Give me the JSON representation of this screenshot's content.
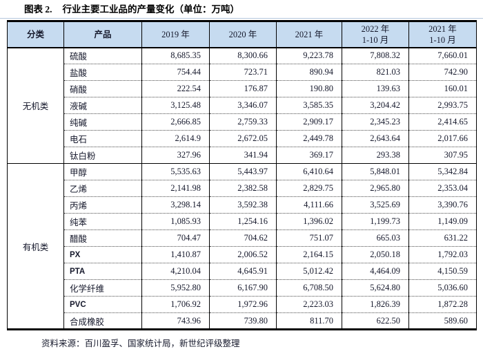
{
  "title": {
    "prefix": "图表 2.",
    "text": "行业主要工业品的产量变化（单位：万吨）"
  },
  "table": {
    "columns": [
      "分类",
      "产品",
      "2019 年",
      "2020 年",
      "2021 年",
      "2022 年\n1-10 月",
      "2021 年\n1-10 月"
    ],
    "sections": [
      {
        "category": "无机类",
        "rows": [
          {
            "product": "硫酸",
            "values": [
              "8,685.35",
              "8,300.66",
              "9,223.78",
              "7,808.32",
              "7,660.01"
            ]
          },
          {
            "product": "盐酸",
            "values": [
              "754.44",
              "723.71",
              "890.94",
              "821.03",
              "742.90"
            ]
          },
          {
            "product": "硝酸",
            "values": [
              "222.54",
              "176.87",
              "190.80",
              "139.63",
              "160.01"
            ]
          },
          {
            "product": "液碱",
            "values": [
              "3,125.48",
              "3,346.07",
              "3,585.35",
              "3,204.42",
              "2,993.75"
            ]
          },
          {
            "product": "纯碱",
            "values": [
              "2,666.85",
              "2,759.33",
              "2,909.17",
              "2,345.23",
              "2,414.65"
            ]
          },
          {
            "product": "电石",
            "values": [
              "2,614.9",
              "2,672.05",
              "2,449.78",
              "2,643.64",
              "2,017.66"
            ]
          },
          {
            "product": "钛白粉",
            "values": [
              "327.96",
              "341.94",
              "369.17",
              "293.38",
              "307.95"
            ]
          }
        ]
      },
      {
        "category": "有机类",
        "rows": [
          {
            "product": "甲醇",
            "values": [
              "5,535.63",
              "5,443.97",
              "6,410.64",
              "5,848.01",
              "5,342.84"
            ]
          },
          {
            "product": "乙烯",
            "values": [
              "2,141.98",
              "2,382.58",
              "2,829.75",
              "2,965.80",
              "2,353.04"
            ]
          },
          {
            "product": "丙烯",
            "values": [
              "3,298.14",
              "3,592.38",
              "4,111.66",
              "3,525.69",
              "3,390.76"
            ]
          },
          {
            "product": "纯苯",
            "values": [
              "1,085.93",
              "1,254.16",
              "1,396.02",
              "1,199.73",
              "1,149.09"
            ]
          },
          {
            "product": "醋酸",
            "values": [
              "704.47",
              "704.62",
              "751.07",
              "665.03",
              "631.22"
            ]
          },
          {
            "product": "PX",
            "values": [
              "1,410.87",
              "2,006.52",
              "2,164.15",
              "2,050.18",
              "1,792.03"
            ]
          },
          {
            "product": "PTA",
            "values": [
              "4,210.04",
              "4,645.91",
              "5,012.42",
              "4,464.09",
              "4,150.59"
            ]
          },
          {
            "product": "化学纤维",
            "values": [
              "5,952.80",
              "6,167.90",
              "6,708.50",
              "5,624.80",
              "5,036.60"
            ]
          },
          {
            "product": "PVC",
            "values": [
              "1,706.92",
              "1,972.96",
              "2,223.03",
              "1,826.39",
              "1,872.28"
            ]
          },
          {
            "product": "合成橡胶",
            "values": [
              "743.96",
              "739.80",
              "811.70",
              "622.50",
              "589.60"
            ]
          }
        ]
      }
    ]
  },
  "source": "资料来源：百川盈孚、国家统计局，新世纪评级整理",
  "colors": {
    "header_bg": "#c6dbf0",
    "border": "#000000",
    "title_rule": "#b5c7dd",
    "text": "#15182b"
  }
}
